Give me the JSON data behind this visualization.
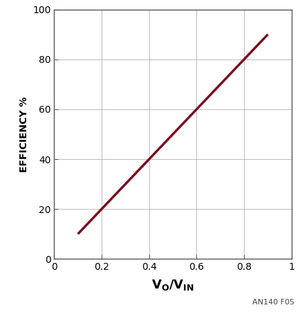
{
  "x_data": [
    0.1,
    0.9
  ],
  "y_data": [
    10,
    90
  ],
  "line_color": "#7B0D1E",
  "line_width": 2.5,
  "xlim": [
    0,
    1
  ],
  "ylim": [
    0,
    100
  ],
  "xticks": [
    0,
    0.2,
    0.4,
    0.6,
    0.8,
    1.0
  ],
  "yticks": [
    0,
    20,
    40,
    60,
    80,
    100
  ],
  "ylabel": "EFFICIENCY %",
  "annotation": "AN140 F05",
  "grid_color": "#b0b0b0",
  "grid_linewidth": 0.6,
  "background_color": "#ffffff",
  "tick_labelsize": 10,
  "ylabel_fontsize": 10,
  "xlabel_fontsize": 13,
  "spine_color": "#555555",
  "spine_linewidth": 1.0
}
